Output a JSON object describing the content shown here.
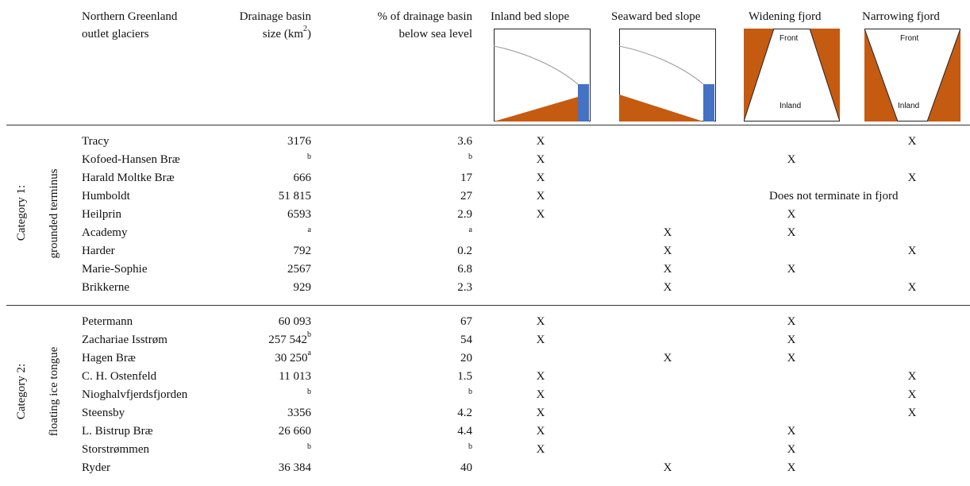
{
  "header": {
    "glaciers_l1": "Northern Greenland",
    "glaciers_l2": "outlet glaciers",
    "size_l1": "Drainage basin",
    "size_l2_pre": "size (km",
    "size_l2_sup": "2",
    "size_l2_post": ")",
    "pct_l1": "% of drainage basin",
    "pct_l2": "below sea level",
    "inland_slope": "Inland bed slope",
    "seaward_slope": "Seaward bed slope",
    "widening": "Widening fjord",
    "narrowing": "Narrowing fjord",
    "front_label": "Front",
    "inland_label": "Inland"
  },
  "colors": {
    "bed": "#c55a11",
    "ice_front": "#4472c4",
    "ice_line": "#999999"
  },
  "categories": [
    {
      "title": "Category 1:",
      "subtitle": "grounded terminus"
    },
    {
      "title": "Category 2:",
      "subtitle": "floating ice tongue"
    }
  ],
  "rows": [
    {
      "name": "Tracy",
      "size": "3176",
      "size_sup": "",
      "pct": "3.6",
      "pct_sup": "",
      "inland": "X",
      "seaward": "",
      "widening": "",
      "narrowing": "X"
    },
    {
      "name": "Kofoed-Hansen Bræ",
      "size": "",
      "size_sup": "b",
      "pct": "",
      "pct_sup": "b",
      "inland": "X",
      "seaward": "",
      "widening": "X",
      "narrowing": ""
    },
    {
      "name": "Harald Moltke Bræ",
      "size": "666",
      "size_sup": "",
      "pct": "17",
      "pct_sup": "",
      "inland": "X",
      "seaward": "",
      "widening": "",
      "narrowing": "X"
    },
    {
      "name": "Humboldt",
      "size": "51 815",
      "size_sup": "",
      "pct": "27",
      "pct_sup": "",
      "inland": "X",
      "seaward": "",
      "widening": "",
      "narrowing": "",
      "note": "Does not terminate in fjord"
    },
    {
      "name": "Heilprin",
      "size": "6593",
      "size_sup": "",
      "pct": "2.9",
      "pct_sup": "",
      "inland": "X",
      "seaward": "",
      "widening": "X",
      "narrowing": ""
    },
    {
      "name": "Academy",
      "size": "",
      "size_sup": "a",
      "pct": "",
      "pct_sup": "a",
      "inland": "",
      "seaward": "X",
      "widening": "X",
      "narrowing": ""
    },
    {
      "name": "Harder",
      "size": "792",
      "size_sup": "",
      "pct": "0.2",
      "pct_sup": "",
      "inland": "",
      "seaward": "X",
      "widening": "",
      "narrowing": "X"
    },
    {
      "name": "Marie-Sophie",
      "size": "2567",
      "size_sup": "",
      "pct": "6.8",
      "pct_sup": "",
      "inland": "",
      "seaward": "X",
      "widening": "X",
      "narrowing": ""
    },
    {
      "name": "Brikkerne",
      "size": "929",
      "size_sup": "",
      "pct": "2.3",
      "pct_sup": "",
      "inland": "",
      "seaward": "X",
      "widening": "",
      "narrowing": "X"
    },
    {
      "name": "Petermann",
      "size": "60 093",
      "size_sup": "",
      "pct": "67",
      "pct_sup": "",
      "inland": "X",
      "seaward": "",
      "widening": "X",
      "narrowing": ""
    },
    {
      "name": "Zachariae Isstrøm",
      "size": "257 542",
      "size_sup": "b",
      "pct": "54",
      "pct_sup": "",
      "inland": "X",
      "seaward": "",
      "widening": "X",
      "narrowing": ""
    },
    {
      "name": "Hagen Bræ",
      "size": "30 250",
      "size_sup": "a",
      "pct": "20",
      "pct_sup": "",
      "inland": "",
      "seaward": "X",
      "widening": "X",
      "narrowing": ""
    },
    {
      "name": "C. H. Ostenfeld",
      "size": "11 013",
      "size_sup": "",
      "pct": "1.5",
      "pct_sup": "",
      "inland": "X",
      "seaward": "",
      "widening": "",
      "narrowing": "X"
    },
    {
      "name": "Nioghalvfjerdsfjorden",
      "size": "",
      "size_sup": "b",
      "pct": "",
      "pct_sup": "b",
      "inland": "X",
      "seaward": "",
      "widening": "",
      "narrowing": "X"
    },
    {
      "name": "Steensby",
      "size": "3356",
      "size_sup": "",
      "pct": "4.2",
      "pct_sup": "",
      "inland": "X",
      "seaward": "",
      "widening": "",
      "narrowing": "X"
    },
    {
      "name": "L. Bistrup Bræ",
      "size": "26 660",
      "size_sup": "",
      "pct": "4.4",
      "pct_sup": "",
      "inland": "X",
      "seaward": "",
      "widening": "X",
      "narrowing": ""
    },
    {
      "name": "Storstrømmen",
      "size": "",
      "size_sup": "b",
      "pct": "",
      "pct_sup": "b",
      "inland": "X",
      "seaward": "",
      "widening": "X",
      "narrowing": ""
    },
    {
      "name": "Ryder",
      "size": "36 384",
      "size_sup": "",
      "pct": "40",
      "pct_sup": "",
      "inland": "",
      "seaward": "X",
      "widening": "X",
      "narrowing": ""
    }
  ]
}
